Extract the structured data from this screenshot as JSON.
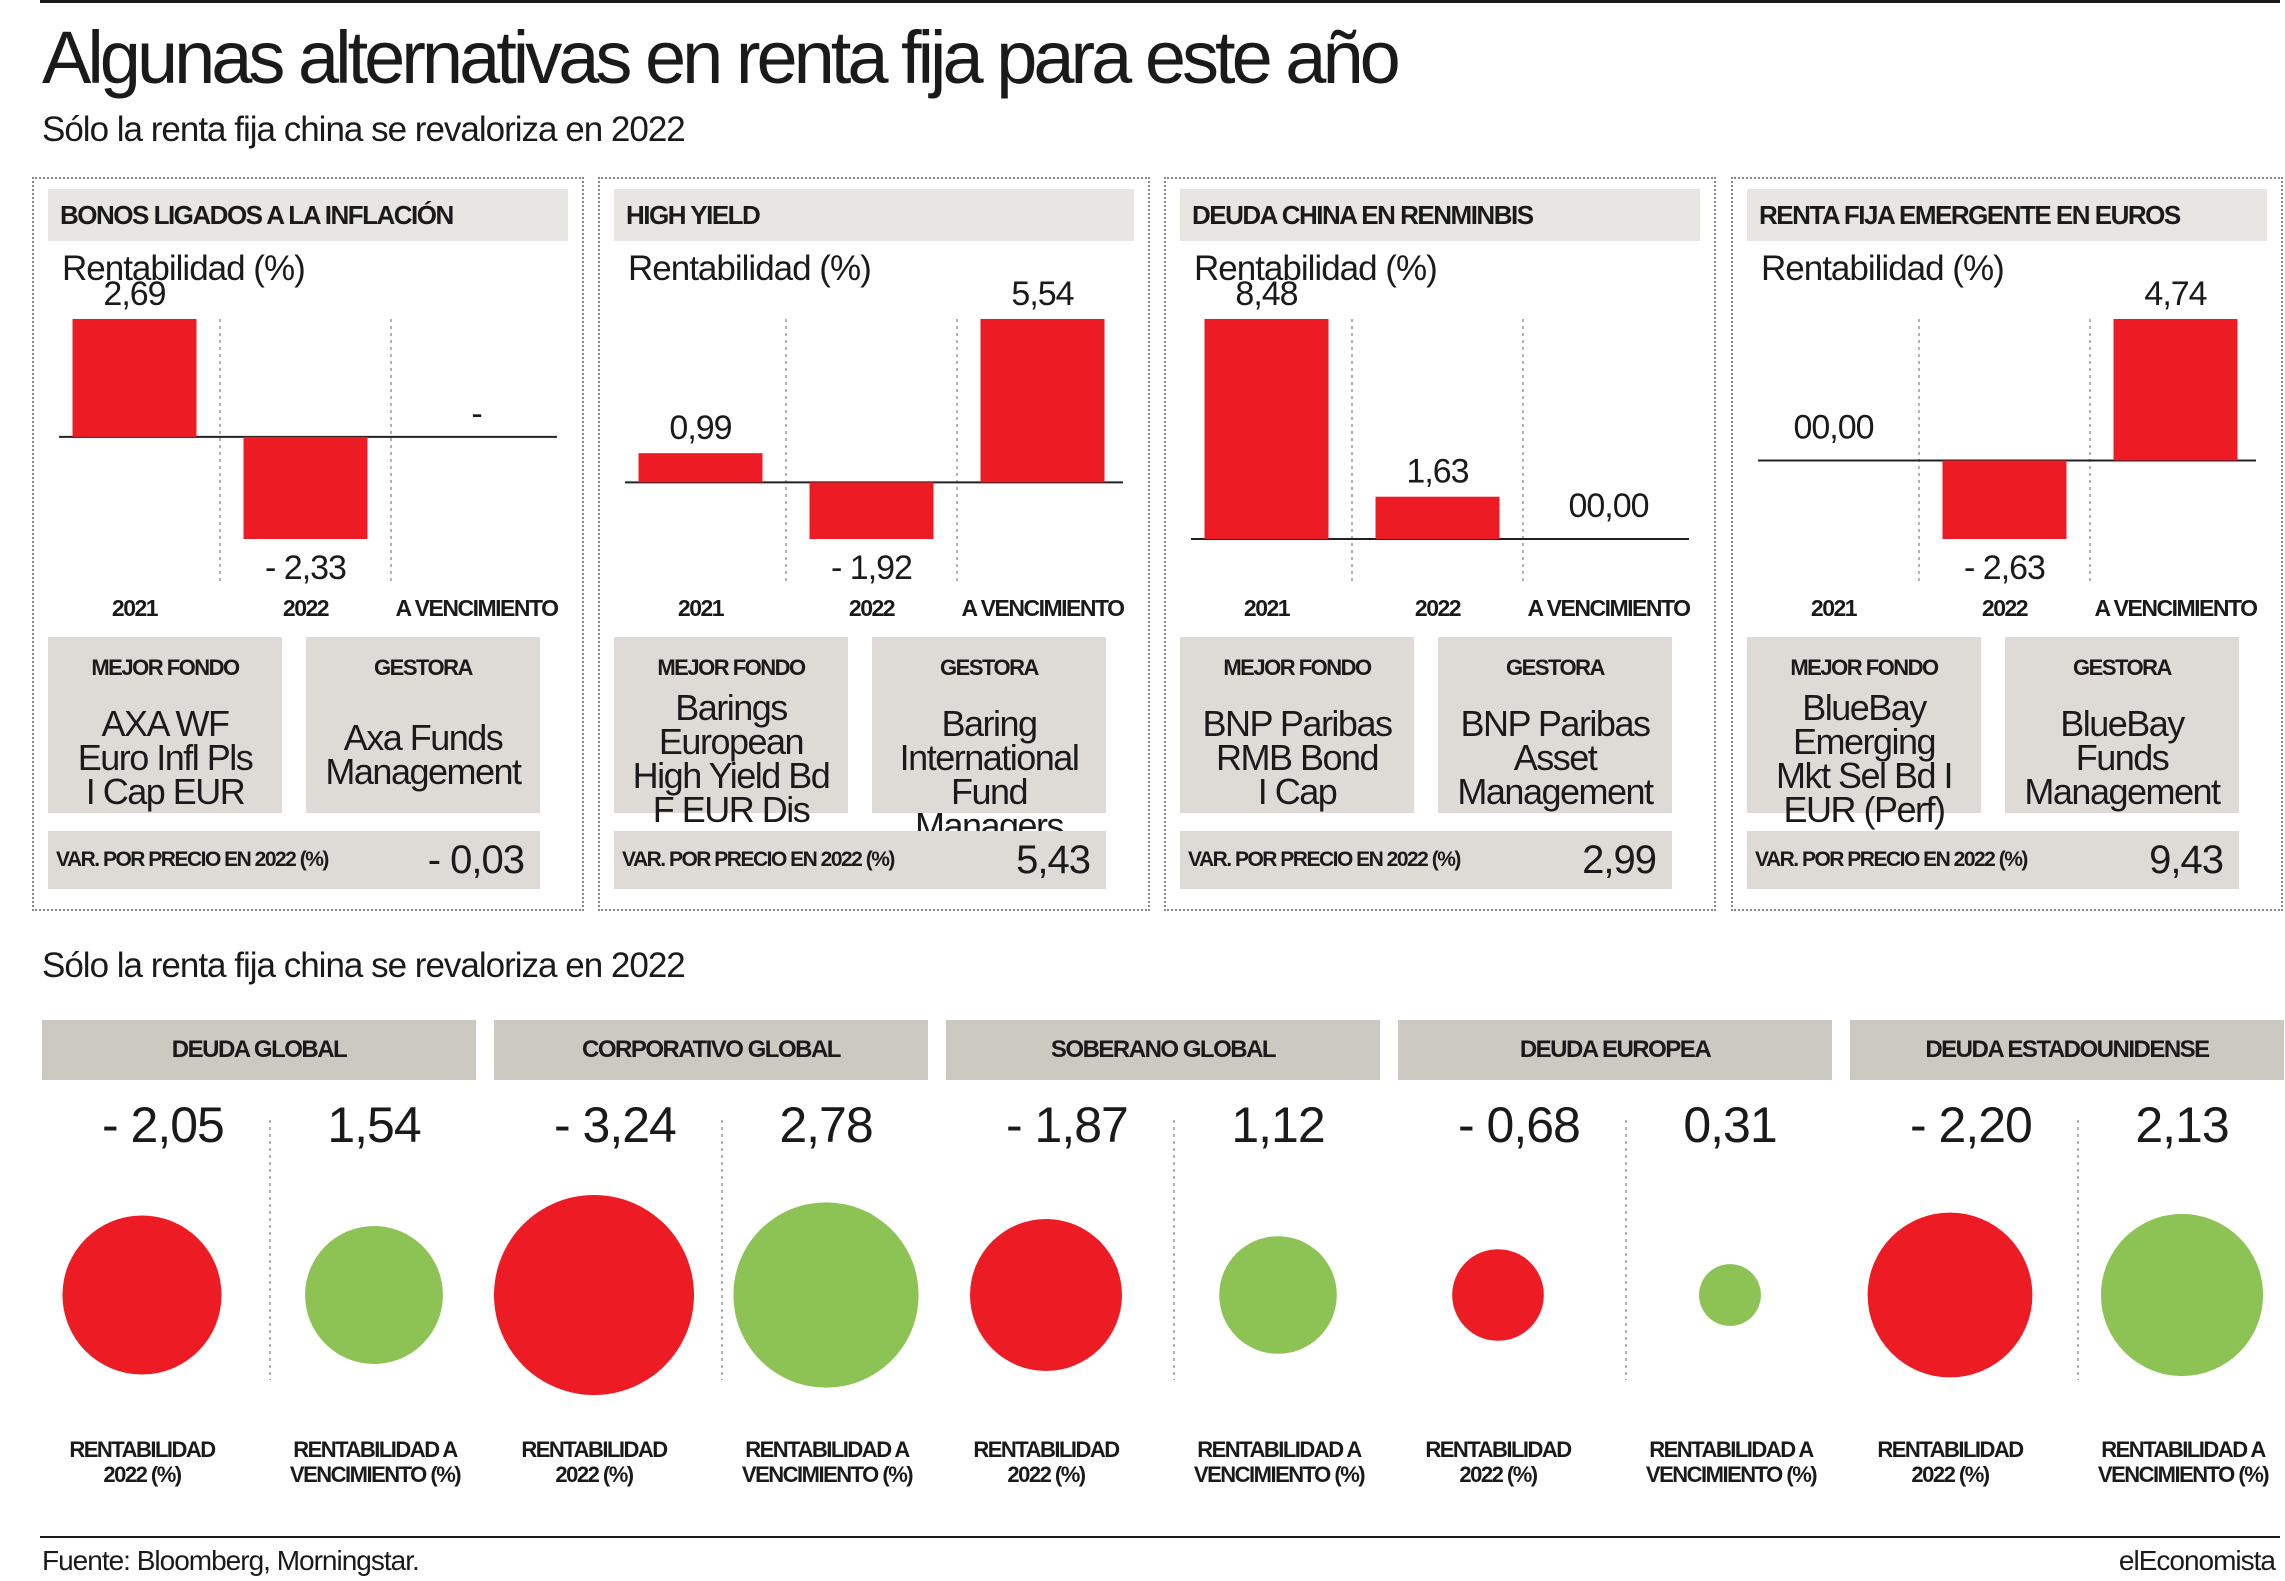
{
  "header": {
    "title": "Algunas alternativas en renta fija para este año",
    "subtitle": "Sólo la renta fija china se revaloriza en 2022",
    "subtitle2": "Sólo la renta fija china se revaloriza en 2022"
  },
  "colors": {
    "negative": "#ed1c24",
    "positive_bar": "#ed1c24",
    "positive_bubble": "#8dc355",
    "panel_head": "#e8e6e3",
    "info_box": "#dedbd6"
  },
  "chart_data": [
    {
      "type": "bar",
      "title": "BONOS LIGADOS A LA INFLACIÓN",
      "ylabel": "Rentabilidad (%)",
      "categories": [
        "2021",
        "2022",
        "A VENCIMIENTO"
      ],
      "values": [
        2.69,
        -2.33,
        null
      ],
      "value_labels": [
        "2,69",
        "- 2,33",
        "-"
      ],
      "ylim": [
        -2.33,
        2.69
      ]
    },
    {
      "type": "bar",
      "title": "HIGH YIELD",
      "ylabel": "Rentabilidad (%)",
      "categories": [
        "2021",
        "2022",
        "A VENCIMIENTO"
      ],
      "values": [
        0.99,
        -1.92,
        5.54
      ],
      "value_labels": [
        "0,99",
        "- 1,92",
        "5,54"
      ],
      "ylim": [
        -1.92,
        5.54
      ]
    },
    {
      "type": "bar",
      "title": "DEUDA CHINA EN RENMINBIS",
      "ylabel": "Rentabilidad (%)",
      "categories": [
        "2021",
        "2022",
        "A VENCIMIENTO"
      ],
      "values": [
        8.48,
        1.63,
        0.0
      ],
      "value_labels": [
        "8,48",
        "1,63",
        "00,00"
      ],
      "ylim": [
        0,
        8.48
      ]
    },
    {
      "type": "bar",
      "title": "RENTA FIJA EMERGENTE EN EUROS",
      "ylabel": "Rentabilidad (%)",
      "categories": [
        "2021",
        "2022",
        "A VENCIMIENTO"
      ],
      "values": [
        0.0,
        -2.63,
        4.74
      ],
      "value_labels": [
        "00,00",
        "- 2,63",
        "4,74"
      ],
      "ylim": [
        -2.63,
        4.74
      ]
    },
    {
      "type": "scatter",
      "title": "",
      "categories": [
        "DEUDA GLOBAL",
        "CORPORATIVO GLOBAL",
        "SOBERANO GLOBAL",
        "DEUDA EUROPEA",
        "DEUDA ESTADOUNIDENSE"
      ],
      "series": [
        {
          "name": "RENTABILIDAD 2022 (%)",
          "values": [
            -2.05,
            -3.24,
            -1.87,
            -0.68,
            -2.2
          ],
          "labels": [
            "- 2,05",
            "- 3,24",
            "- 1,87",
            "- 0,68",
            "- 2,20"
          ]
        },
        {
          "name": "RENTABILIDAD A VENCIMIENTO (%)",
          "values": [
            1.54,
            2.78,
            1.12,
            0.31,
            2.13
          ],
          "labels": [
            "1,54",
            "2,78",
            "1,12",
            "0,31",
            "2,13"
          ]
        }
      ]
    }
  ],
  "funds": [
    {
      "mejor_fondo_label": "MEJOR FONDO",
      "mejor_fondo": "AXA WF\nEuro Infl Pls\nI Cap EUR",
      "gestora_label": "GESTORA",
      "gestora": "Axa Funds\nManagement",
      "var_label": "VAR. POR PRECIO EN 2022 (%)",
      "var_value": "- 0,03"
    },
    {
      "mejor_fondo_label": "MEJOR FONDO",
      "mejor_fondo": "Barings\nEuropean\nHigh Yield Bd\nF EUR Dis",
      "gestora_label": "GESTORA",
      "gestora": "Baring\nInternational\nFund Managers",
      "var_label": "VAR. POR PRECIO EN 2022 (%)",
      "var_value": "5,43"
    },
    {
      "mejor_fondo_label": "MEJOR FONDO",
      "mejor_fondo": "BNP Paribas\nRMB Bond\nI Cap",
      "gestora_label": "GESTORA",
      "gestora": "BNP Paribas\nAsset\nManagement",
      "var_label": "VAR. POR PRECIO EN 2022 (%)",
      "var_value": "2,99"
    },
    {
      "mejor_fondo_label": "MEJOR FONDO",
      "mejor_fondo": "BlueBay\nEmerging\nMkt Sel Bd I\nEUR (Perf)",
      "gestora_label": "GESTORA",
      "gestora": "BlueBay\nFunds\nManagement",
      "var_label": "VAR. POR PRECIO EN 2022 (%)",
      "var_value": "9,43"
    }
  ],
  "bubble_labels": {
    "left": "RENTABILIDAD\n2022 (%)",
    "right": "RENTABILIDAD A\nVENCIMIENTO (%)"
  },
  "footer": {
    "source": "Fuente: Bloomberg, Morningstar.",
    "brand": "elEconomista"
  }
}
